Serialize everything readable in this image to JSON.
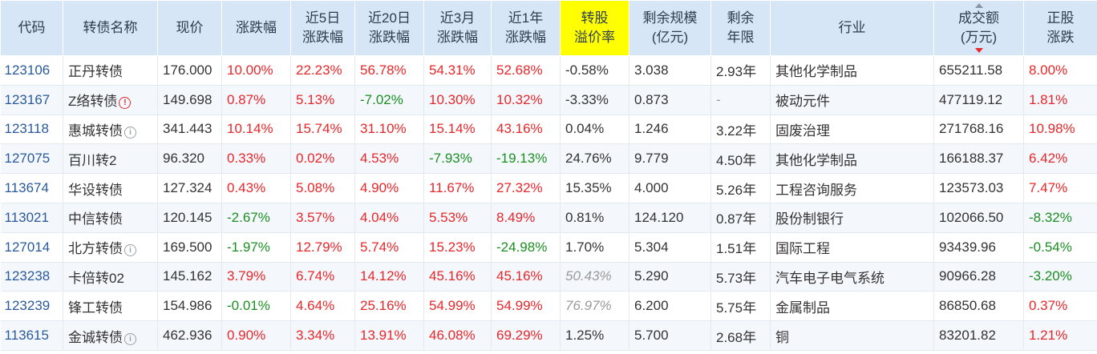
{
  "headers": [
    "代码",
    "转债名称",
    "现价",
    "涨跌幅",
    "近5日\n涨跌幅",
    "近20日\n涨跌幅",
    "近3月\n涨跌幅",
    "近1年\n涨跌幅",
    "转股\n溢价率",
    "剩余规模\n(亿元)",
    "剩余\n年限",
    "行业",
    "成交额\n(万元)",
    "正股\n涨跌"
  ],
  "highlighted_header": "转股溢价率",
  "sorted_by": "成交额(万元)",
  "sort_direction": "descending",
  "colors": {
    "up": "#e8272a",
    "down": "#1b8f22",
    "header_bg": "#d7e6f6",
    "highlight": "#ffff00",
    "code": "#2a5a9b"
  },
  "rows": [
    {
      "code": "123106",
      "name": "正丹转债",
      "icon": "",
      "price": "176.000",
      "chg": "10.00%",
      "d5": "22.23%",
      "d20": "56.78%",
      "m3": "54.31%",
      "y1": "52.68%",
      "premium": "-0.58%",
      "scale": "3.038",
      "years": "2.93年",
      "industry": "其他化学制品",
      "turnover": "655211.58",
      "stock": "8.00%"
    },
    {
      "code": "123167",
      "name": "Z络转债",
      "icon": "red",
      "price": "149.698",
      "chg": "0.87%",
      "d5": "5.13%",
      "d20": "-7.02%",
      "m3": "10.30%",
      "y1": "10.32%",
      "premium": "-3.33%",
      "scale": "0.873",
      "years": "-",
      "industry": "被动元件",
      "turnover": "477119.12",
      "stock": "1.81%"
    },
    {
      "code": "123118",
      "name": "惠城转债",
      "icon": "gray",
      "price": "341.443",
      "chg": "10.14%",
      "d5": "15.74%",
      "d20": "31.10%",
      "m3": "15.14%",
      "y1": "43.16%",
      "premium": "0.04%",
      "scale": "1.246",
      "years": "3.22年",
      "industry": "固废治理",
      "turnover": "271768.16",
      "stock": "10.98%"
    },
    {
      "code": "127075",
      "name": "百川转2",
      "icon": "",
      "price": "96.320",
      "chg": "0.33%",
      "d5": "0.02%",
      "d20": "4.53%",
      "m3": "-7.93%",
      "y1": "-19.13%",
      "premium": "24.76%",
      "scale": "9.779",
      "years": "4.50年",
      "industry": "其他化学制品",
      "turnover": "166188.37",
      "stock": "6.42%"
    },
    {
      "code": "113674",
      "name": "华设转债",
      "icon": "",
      "price": "127.324",
      "chg": "0.43%",
      "d5": "5.08%",
      "d20": "4.90%",
      "m3": "11.67%",
      "y1": "27.32%",
      "premium": "15.35%",
      "scale": "4.000",
      "years": "5.26年",
      "industry": "工程咨询服务",
      "turnover": "123573.03",
      "stock": "7.47%"
    },
    {
      "code": "113021",
      "name": "中信转债",
      "icon": "",
      "price": "120.145",
      "chg": "-2.67%",
      "d5": "3.57%",
      "d20": "4.04%",
      "m3": "5.53%",
      "y1": "8.49%",
      "premium": "0.81%",
      "scale": "124.120",
      "years": "0.87年",
      "industry": "股份制银行",
      "turnover": "102066.50",
      "stock": "-8.32%"
    },
    {
      "code": "127014",
      "name": "北方转债",
      "icon": "gray",
      "price": "169.500",
      "chg": "-1.97%",
      "d5": "12.79%",
      "d20": "5.74%",
      "m3": "15.23%",
      "y1": "-24.98%",
      "premium": "1.70%",
      "scale": "5.304",
      "years": "1.51年",
      "industry": "国际工程",
      "turnover": "93439.96",
      "stock": "-0.54%"
    },
    {
      "code": "123238",
      "name": "卡倍转02",
      "icon": "",
      "price": "145.162",
      "chg": "3.79%",
      "d5": "6.74%",
      "d20": "14.12%",
      "m3": "45.16%",
      "y1": "45.16%",
      "premium": "50.43%",
      "premium_muted": true,
      "scale": "5.290",
      "years": "5.73年",
      "industry": "汽车电子电气系统",
      "turnover": "90966.28",
      "stock": "-3.20%"
    },
    {
      "code": "123239",
      "name": "锋工转债",
      "icon": "",
      "price": "154.986",
      "chg": "-0.01%",
      "d5": "4.64%",
      "d20": "25.16%",
      "m3": "54.99%",
      "y1": "54.99%",
      "premium": "76.97%",
      "premium_muted": true,
      "scale": "6.200",
      "years": "5.75年",
      "industry": "金属制品",
      "turnover": "86850.68",
      "stock": "0.37%"
    },
    {
      "code": "113615",
      "name": "金诚转债",
      "icon": "gray",
      "price": "462.936",
      "chg": "0.90%",
      "d5": "3.34%",
      "d20": "13.91%",
      "m3": "46.08%",
      "y1": "69.29%",
      "premium": "1.25%",
      "scale": "5.700",
      "years": "2.68年",
      "industry": "铜",
      "turnover": "83201.82",
      "stock": "1.21%"
    }
  ]
}
